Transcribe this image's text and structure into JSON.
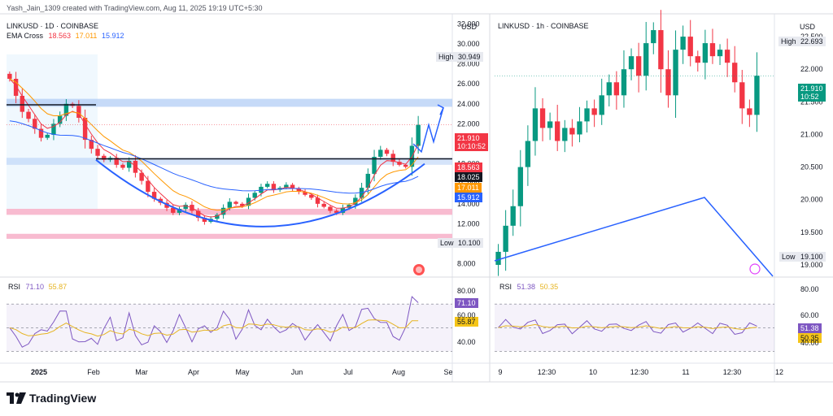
{
  "caption": "Yash_Jain_1309 created with TradingView.com, Aug 11, 2025 19:19 UTC+5:30",
  "brand": "TradingView",
  "left": {
    "title": "LINKUSD · 1D · COINBASE",
    "indicator_name": "EMA Cross",
    "ema_values": [
      "18.563",
      "17.011",
      "15.912"
    ],
    "currency": "USD",
    "high_label": "High",
    "high_value": "30.949",
    "low_label": "Low",
    "low_value": "10.100",
    "price_tag": "21.910",
    "countdown": "10:10:52",
    "tags": [
      "18.563",
      "18.025",
      "17.011",
      "15.912"
    ],
    "rsi_label": "RSI",
    "rsi_values": [
      "71.10",
      "55.87"
    ],
    "rsi_axis": [
      "80.00",
      "60.00",
      "40.00"
    ],
    "time_labels": [
      "2025",
      "Feb",
      "Mar",
      "Apr",
      "May",
      "Jun",
      "Jul",
      "Aug",
      "Se"
    ]
  },
  "right": {
    "title": "LINKUSD · 1h · COINBASE",
    "currency": "USD",
    "high_label": "High",
    "high_value": "22.693",
    "low_label": "Low",
    "low_value": "19.100",
    "price_tag": "21.910",
    "countdown": "10:52",
    "rsi_label": "RSI",
    "rsi_values": [
      "51.38",
      "50.35"
    ],
    "rsi_axis": [
      "80.00",
      "60.00",
      "40.00"
    ],
    "time_labels": [
      "9",
      "12:30",
      "10",
      "12:30",
      "11",
      "12:30",
      "12"
    ]
  },
  "colors": {
    "up": "#089981",
    "down": "#f23645",
    "ema_fast": "#f23645",
    "ema_mid": "#ff9800",
    "ema_slow": "#2962ff",
    "drawing": "#2962ff",
    "support": "#f8bbd0",
    "resistance": "#b3cdf6"
  },
  "chart_data": [
    {
      "type": "candlestick",
      "title": "LINKUSD · 1D · COINBASE",
      "y_axis": [
        "32.000",
        "30.000",
        "28.000",
        "26.000",
        "24.000",
        "22.000",
        "20.000",
        "18.000",
        "16.000",
        "14.000",
        "12.000",
        "10.000",
        "8.000"
      ],
      "ylim": [
        7,
        33
      ],
      "x_ticks": [
        "2025",
        "Feb",
        "Mar",
        "Apr",
        "May",
        "Jun",
        "Jul",
        "Aug",
        "Se"
      ],
      "close": [
        26.5,
        24.8,
        23.2,
        22.5,
        21.5,
        20.6,
        20.9,
        22.0,
        22.8,
        24.0,
        23.8,
        22.6,
        20.4,
        19.5,
        18.8,
        18.4,
        18.6,
        17.9,
        17.6,
        18.3,
        17.1,
        16.3,
        15.2,
        14.5,
        14.1,
        13.6,
        13.1,
        13.5,
        13.9,
        13.3,
        12.6,
        12.2,
        12.5,
        12.9,
        13.6,
        14.2,
        14.0,
        13.8,
        14.6,
        15.1,
        15.7,
        16.0,
        15.4,
        15.6,
        15.9,
        15.5,
        15.2,
        14.9,
        14.6,
        14.0,
        13.7,
        13.3,
        13.1,
        13.6,
        13.9,
        14.6,
        15.6,
        17.0,
        18.7,
        19.4,
        19.0,
        18.2,
        17.9,
        17.7,
        19.8,
        21.9
      ],
      "ema_fast_last": 18.563,
      "ema_mid_last": 17.011,
      "ema_slow_last": 15.912,
      "annotations": [
        "resistance zone ~24",
        "horizontal line ~18.6",
        "support zones ~13.2 and ~10.8",
        "rounded bottom arc",
        "projection arrow"
      ]
    },
    {
      "type": "candlestick",
      "title": "LINKUSD · 1h · COINBASE",
      "y_axis": [
        "22.500",
        "22.000",
        "21.500",
        "21.000",
        "20.500",
        "20.000",
        "19.500",
        "19.000"
      ],
      "ylim": [
        18.95,
        22.85
      ],
      "x_ticks": [
        "9",
        "12:30",
        "10",
        "12:30",
        "11",
        "12:30",
        "12"
      ],
      "close": [
        19.2,
        19.6,
        19.9,
        20.5,
        20.9,
        21.4,
        21.1,
        21.2,
        20.9,
        21.1,
        21.0,
        21.2,
        21.4,
        21.3,
        21.6,
        21.8,
        21.6,
        22.0,
        22.2,
        21.9,
        22.4,
        22.6,
        22.0,
        21.6,
        22.3,
        22.5,
        22.2,
        22.1,
        22.4,
        22.2,
        22.3,
        22.1,
        21.8,
        21.4,
        21.3,
        21.9
      ]
    },
    {
      "type": "line",
      "title": "RSI (1D)",
      "ylim": [
        20,
        90
      ],
      "series": [
        {
          "name": "RSI",
          "last": 71.1
        },
        {
          "name": "RSI MA",
          "last": 55.87
        }
      ]
    },
    {
      "type": "line",
      "title": "RSI (1h)",
      "ylim": [
        20,
        90
      ],
      "series": [
        {
          "name": "RSI",
          "last": 51.38
        },
        {
          "name": "RSI MA",
          "last": 50.35
        }
      ]
    }
  ]
}
